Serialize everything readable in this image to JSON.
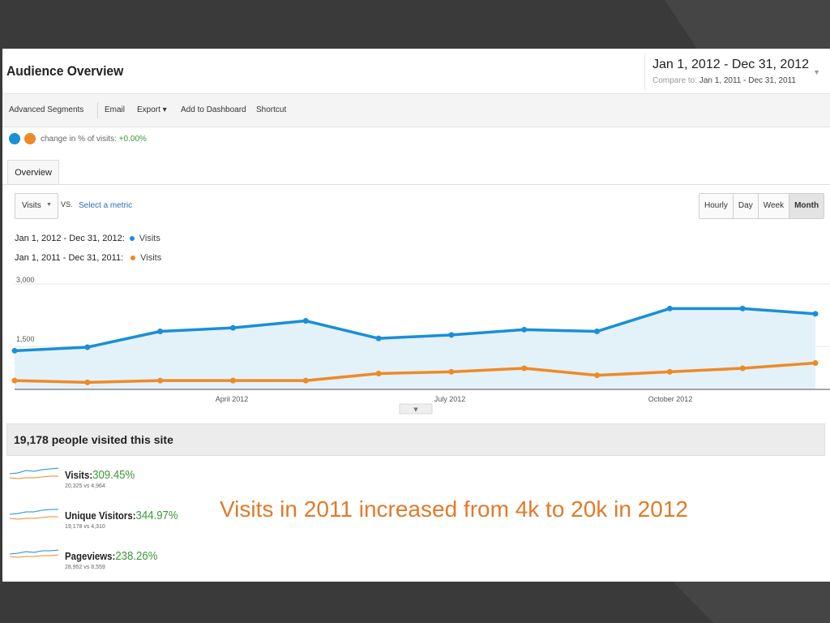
{
  "title": "Audience Overview",
  "date_range": {
    "main": "Jan 1, 2012 - Dec 31, 2012",
    "compare_label": "Compare to:",
    "compare_value": "Jan 1, 2011 - Dec 31, 2011"
  },
  "toolbar": {
    "advanced_segments": "Advanced Segments",
    "email": "Email",
    "export": "Export ▾",
    "add_to_dashboard": "Add to Dashboard",
    "shortcut": "Shortcut"
  },
  "segments": {
    "change_label": "change in % of visits:",
    "change_value": "+0.00%"
  },
  "tabs": {
    "overview": "Overview"
  },
  "metric_picker": {
    "selected": "Visits",
    "vs": "VS.",
    "select_metric": "Select a metric"
  },
  "granularity": [
    "Hourly",
    "Day",
    "Week",
    "Month"
  ],
  "legend": [
    {
      "range": "Jan 1, 2012 - Dec 31, 2012:",
      "metric": "Visits",
      "color": "#1a8fd6"
    },
    {
      "range": "Jan 1, 2011 - Dec 31, 2011:",
      "metric": "Visits",
      "color": "#ee8a25"
    }
  ],
  "chart_data": {
    "type": "area",
    "x": [
      "Jan 2012",
      "Feb 2012",
      "Mar 2012",
      "Apr 2012",
      "May 2012",
      "Jun 2012",
      "Jul 2012",
      "Aug 2012",
      "Sep 2012",
      "Oct 2012",
      "Nov 2012",
      "Dec 2012"
    ],
    "x_tick_labels": [
      "April 2012",
      "July 2012",
      "October 2012"
    ],
    "y_tick_labels": [
      "3,000",
      "1,500"
    ],
    "ylim": [
      0,
      3000
    ],
    "series": [
      {
        "values": [
          1100,
          1200,
          1650,
          1750,
          1950,
          1450,
          1550,
          1700,
          1650,
          2300,
          2300,
          2150
        ],
        "color": "#1a8fd6",
        "fill": "#e3f1f9"
      },
      {
        "values": [
          250,
          200,
          250,
          250,
          250,
          450,
          500,
          600,
          400,
          500,
          600,
          750
        ],
        "color": "#ee8a25"
      }
    ]
  },
  "summary": {
    "title": "19,178 people visited this site"
  },
  "stats": [
    {
      "label": "Visits:",
      "pct": "309.45%",
      "sub": "20,325 vs 4,964"
    },
    {
      "label": "Unique Visitors:",
      "pct": "344.97%",
      "sub": "19,178 vs 4,310"
    },
    {
      "label": "Pageviews:",
      "pct": "238.26%",
      "sub": "28,952 vs 8,559"
    }
  ],
  "annotation": "Visits in 2011 increased from 4k to 20k in 2012",
  "colors": {
    "blue": "#1a8fd6",
    "orange": "#ee8a25",
    "positive": "#3a9a3a",
    "annotation": "#e07a2a"
  }
}
